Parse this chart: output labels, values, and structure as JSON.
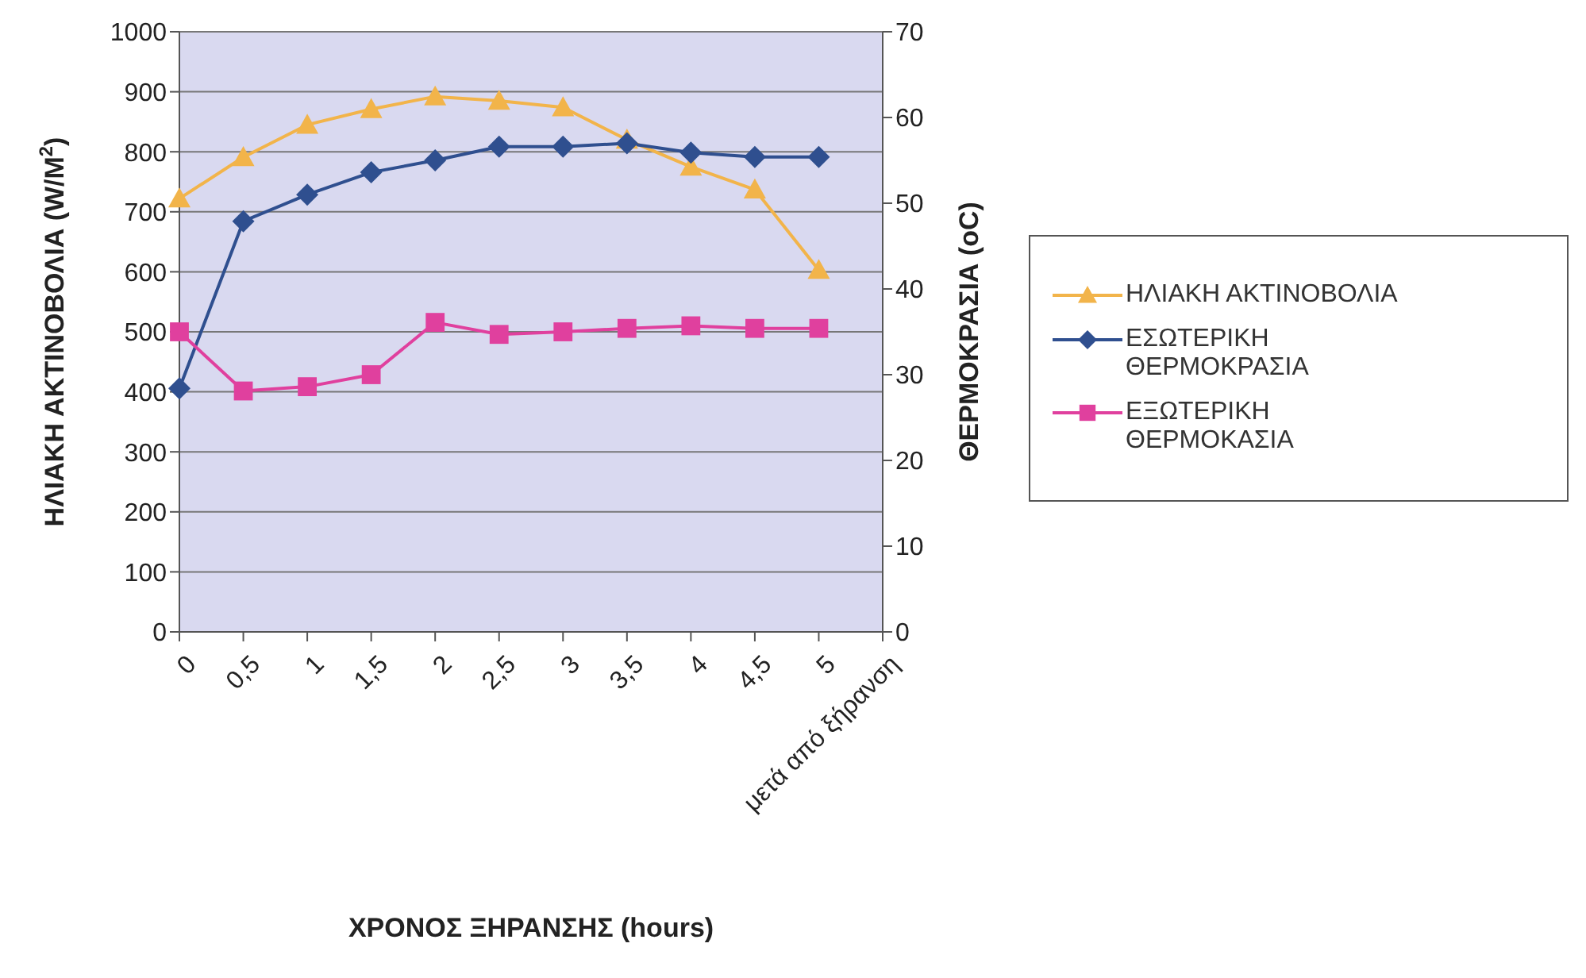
{
  "chart_data": {
    "type": "line",
    "xlabel": "ΧΡΟΝΟΣ ΞΗΡΑΝΣΗΣ (hours)",
    "ylabel": "ΗΛΙΑΚΗ ΑΚΤΙΝΟΒΟΛΙΑ (W/M$^{2}$)",
    "y2label": "ΘΕΡΜΟΚΡΑΣΙΑ (oC)",
    "categories": [
      "0",
      "0,5",
      "1",
      "1,5",
      "2",
      "2,5",
      "3",
      "3,5",
      "4",
      "4,5",
      "5",
      "μετά από ξήρανση"
    ],
    "series": [
      {
        "name": "ΗΛΙΑΚΗ ΑΚΤΙΝΟΒΟΛΙΑ",
        "color": "#f2b44a",
        "marker": "triangle",
        "values": [
          722,
          791,
          845,
          871,
          892,
          885,
          874,
          820,
          775,
          737,
          603,
          null
        ]
      },
      {
        "name": "ΕΣΩΤΕΡΙΚΗ ΘΕΡΜΟΚΡΑΣΙΑ",
        "color": "#2f4f8f",
        "marker": "diamond",
        "axis": "y2",
        "values": [
          28.4,
          47.9,
          51,
          53.6,
          55,
          56.6,
          56.6,
          57,
          55.9,
          55.4,
          55.4,
          null
        ]
      },
      {
        "name": "ΕΞΩΤΕΡΙΚΗ ΘΕΡΜΟΚΑΣΙΑ",
        "color": "#e0409e",
        "marker": "square",
        "axis": "y2",
        "values": [
          35,
          28.1,
          28.6,
          30,
          36.1,
          34.7,
          35,
          35.4,
          35.7,
          35.4,
          35.4,
          null
        ]
      }
    ],
    "ylim": [
      0,
      1000
    ],
    "yticks": [
      0,
      100,
      200,
      300,
      400,
      500,
      600,
      700,
      800,
      900,
      1000
    ],
    "y2lim": [
      0,
      70
    ],
    "y2ticks": [
      0,
      10,
      20,
      30,
      40,
      50,
      60,
      70
    ],
    "grid": "y",
    "legend": "right"
  }
}
